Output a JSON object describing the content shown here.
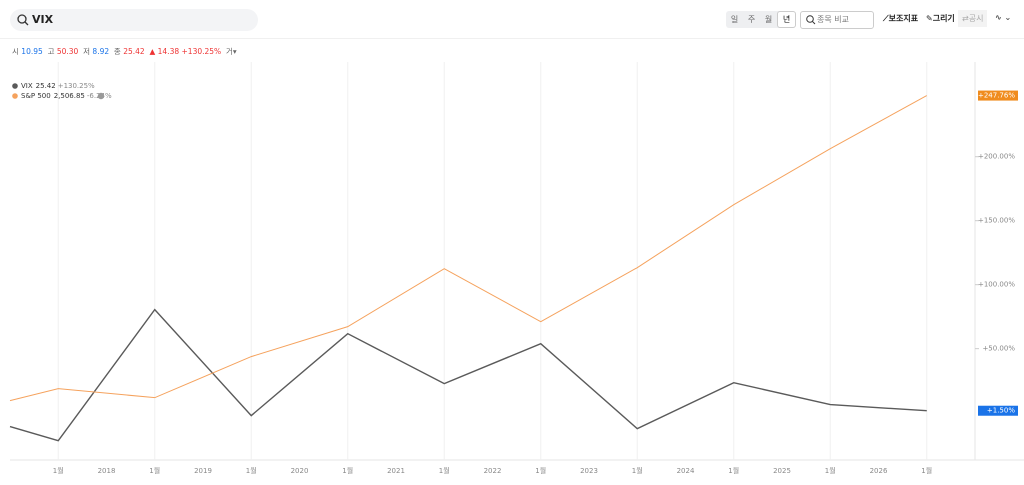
{
  "header": {
    "search": "VIX",
    "periods": [
      "일",
      "주",
      "월",
      "년"
    ],
    "compare": "종목 비교",
    "tools": [
      "보조지표",
      "그리기",
      "공시"
    ]
  },
  "quote": {
    "items": [
      {
        "label": "시",
        "value": "10.95"
      },
      {
        "label": "고",
        "value": "50.30"
      },
      {
        "label": "저",
        "value": "8.92"
      },
      {
        "label": "종",
        "value": "25.42"
      }
    ],
    "change": "14.38",
    "change_pct": "+130.25%",
    "volume": "거"
  },
  "chart_data": {
    "type": "line",
    "x": [
      0,
      0.5,
      1.5,
      2.5,
      3.5,
      4.5,
      5.5,
      6.5,
      7.5,
      8.5,
      9.5
    ],
    "xlim": [
      0,
      10
    ],
    "xticks": [
      {
        "value": 0.5,
        "label": "1월"
      },
      {
        "value": 1,
        "label": "2018"
      },
      {
        "value": 1.5,
        "label": "1월"
      },
      {
        "value": 2,
        "label": "2019"
      },
      {
        "value": 2.5,
        "label": "1월"
      },
      {
        "value": 3,
        "label": "2020"
      },
      {
        "value": 3.5,
        "label": "1월"
      },
      {
        "value": 4,
        "label": "2021"
      },
      {
        "value": 4.5,
        "label": "1월"
      },
      {
        "value": 5,
        "label": "2022"
      },
      {
        "value": 5.5,
        "label": "1월"
      },
      {
        "value": 6,
        "label": "2023"
      },
      {
        "value": 6.5,
        "label": "1월"
      },
      {
        "value": 7,
        "label": "2024"
      },
      {
        "value": 7.5,
        "label": "1월"
      },
      {
        "value": 8,
        "label": "2025"
      },
      {
        "value": 8.5,
        "label": "1월"
      },
      {
        "value": 9,
        "label": "2026"
      },
      {
        "value": 9.5,
        "label": "1월"
      }
    ],
    "ylim": [
      -37,
      274
    ],
    "yticks": [
      {
        "value": 50,
        "label": "+50.00%"
      },
      {
        "value": 100,
        "label": "+100.00%"
      },
      {
        "value": 150,
        "label": "+150.00%"
      },
      {
        "value": 200,
        "label": "+200.00%"
      }
    ],
    "series": [
      {
        "name": "VIX",
        "legend_value": "25.42",
        "legend_change": "+130.25%",
        "color": "#5a5a5a",
        "badge_color": "#1a73e8",
        "badge_label": "+1.50%",
        "values": [
          -10.9,
          -21.9,
          80.5,
          -2.3,
          61.7,
          22.7,
          53.9,
          -12.5,
          23.4,
          6.3,
          1.5
        ]
      },
      {
        "name": "S&P 500",
        "legend_value": "2,506.85",
        "legend_change": "-6.24%",
        "color": "#f5a25d",
        "badge_color": "#f08c1e",
        "badge_label": "+247.76%",
        "values": [
          9.4,
          18.8,
          11.7,
          43.8,
          67.2,
          112.5,
          71.1,
          113.3,
          162.5,
          206.3,
          247.76
        ]
      }
    ]
  }
}
